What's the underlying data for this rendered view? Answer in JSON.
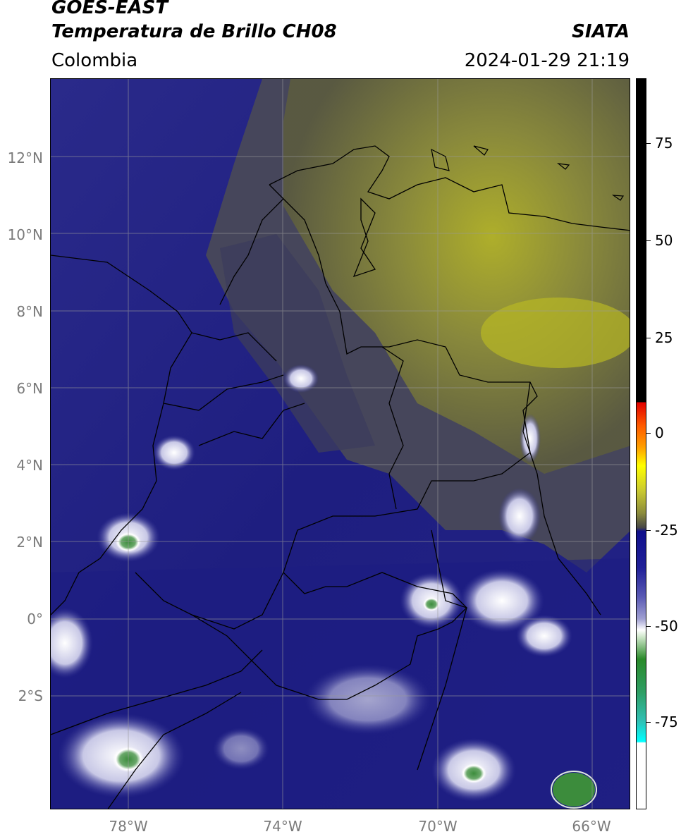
{
  "header": {
    "satellite": "GOES-EAST",
    "product": "Temperatura de Brillo CH08",
    "brand": "SIATA",
    "region": "Colombia",
    "timestamp": "2024-01-29 21:19"
  },
  "map": {
    "lat_labels": [
      "12°N",
      "10°N",
      "8°N",
      "6°N",
      "4°N",
      "2°N",
      "0°",
      "2°S"
    ],
    "lon_labels": [
      "78°W",
      "74°W",
      "70°W",
      "66°W"
    ],
    "extent": {
      "lon_min": -80,
      "lon_max": -65,
      "lat_min": -5,
      "lat_max": 14
    }
  },
  "colorbar": {
    "ticks": [
      "75",
      "50",
      "25",
      "0",
      "-25",
      "-50",
      "-75"
    ]
  },
  "colors": {
    "cloud_free_warm": "#8c8c3c",
    "mid_level": "#4a4a4a",
    "cold_blue": "#1c1c84",
    "very_cold_white": "#ffffff",
    "coldest_green": "#3c8c3c",
    "coastline": "#000000"
  }
}
